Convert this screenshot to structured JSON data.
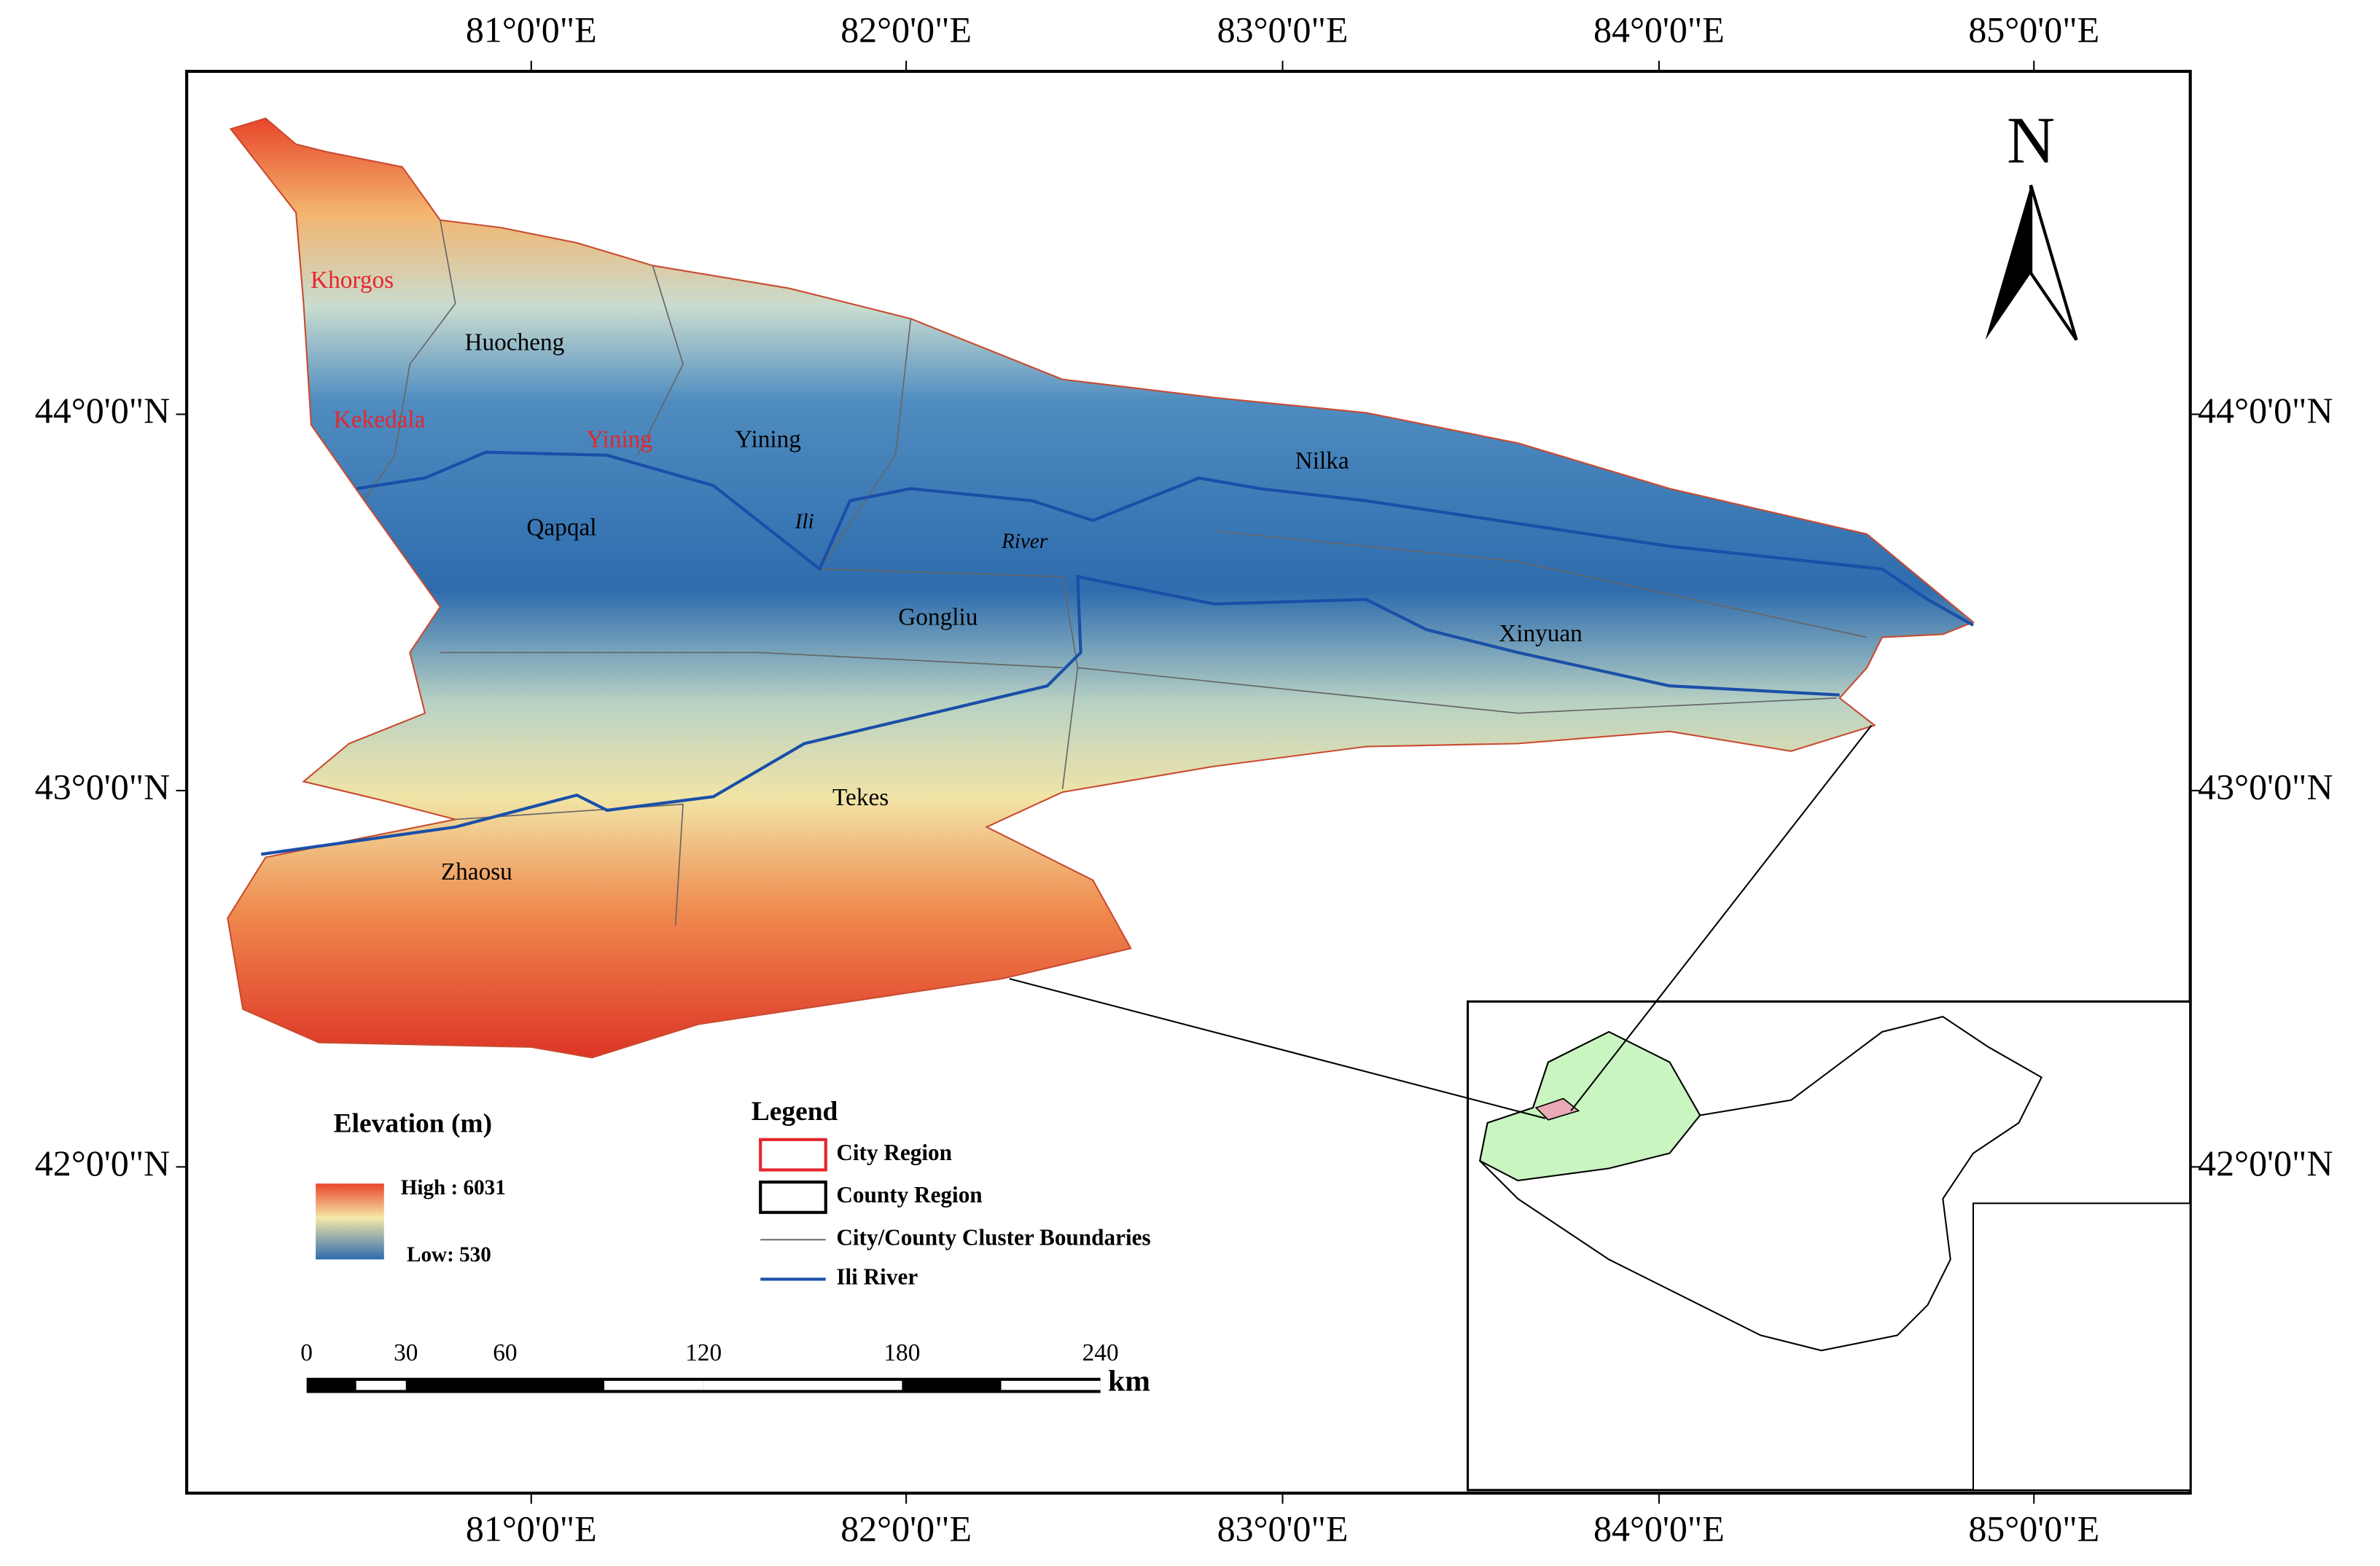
{
  "axes": {
    "top": [
      "81°0'0\"E",
      "82°0'0\"E",
      "83°0'0\"E",
      "84°0'0\"E",
      "85°0'0\"E"
    ],
    "bottom": [
      "81°0'0\"E",
      "82°0'0\"E",
      "83°0'0\"E",
      "84°0'0\"E",
      "85°0'0\"E"
    ],
    "left": [
      "44°0'0\"N",
      "43°0'0\"N",
      "42°0'0\"N"
    ],
    "right": [
      "44°0'0\"N",
      "43°0'0\"N",
      "42°0'0\"N"
    ]
  },
  "north": "N",
  "cities": [
    "Khorgos",
    "Kekedala",
    "Yining"
  ],
  "counties": [
    "Huocheng",
    "Yining",
    "Qapqal",
    "Gongliu",
    "Nilka",
    "Xinyuan",
    "Tekes",
    "Zhaosu"
  ],
  "river_labels": [
    "Ili",
    "River"
  ],
  "elevation_legend": {
    "title": "Elevation (m)",
    "high": "High : 6031",
    "low": "Low: 530"
  },
  "legend": {
    "title": "Legend",
    "items": [
      "City Region",
      "County Region",
      "City/County Cluster Boundaries",
      "Ili River"
    ]
  },
  "scale_bar": {
    "ticks": [
      0,
      30,
      60,
      120,
      180,
      240
    ],
    "unit": "km"
  }
}
